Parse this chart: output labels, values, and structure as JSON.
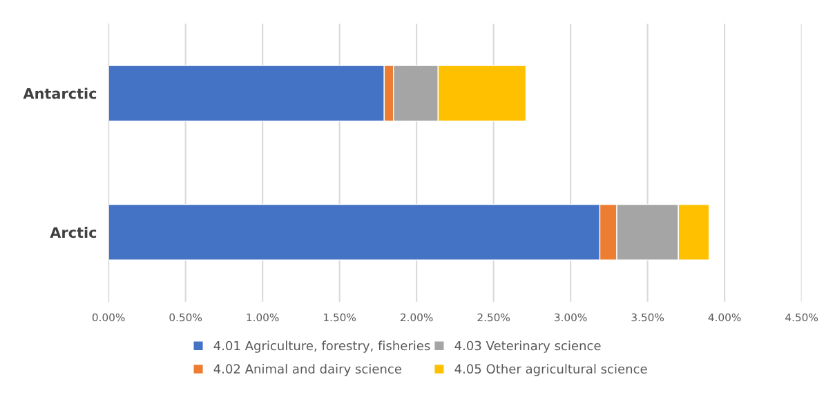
{
  "chart_data": {
    "type": "bar",
    "orientation": "horizontal",
    "stacked": true,
    "categories": [
      "Antarctic",
      "Arctic"
    ],
    "series": [
      {
        "name": "4.01 Agriculture, forestry, fisheries",
        "color": "#4472c4",
        "values": [
          1.79,
          3.19
        ]
      },
      {
        "name": "4.02 Animal and dairy science",
        "color": "#ed7d31",
        "values": [
          0.06,
          0.11
        ]
      },
      {
        "name": "4.03 Veterinary science",
        "color": "#a5a5a5",
        "values": [
          0.29,
          0.4
        ]
      },
      {
        "name": "4.05 Other agricultural science",
        "color": "#ffc000",
        "values": [
          0.57,
          0.2
        ]
      }
    ],
    "xlim": [
      0,
      4.5
    ],
    "xticks": [
      {
        "value": 0,
        "label": "0.00%"
      },
      {
        "value": 0.5,
        "label": "0.50%"
      },
      {
        "value": 1.0,
        "label": "1.00%"
      },
      {
        "value": 1.5,
        "label": "1.50%"
      },
      {
        "value": 2.0,
        "label": "2.00%"
      },
      {
        "value": 2.5,
        "label": "2.50%"
      },
      {
        "value": 3.0,
        "label": "3.00%"
      },
      {
        "value": 3.5,
        "label": "3.50%"
      },
      {
        "value": 4.0,
        "label": "4.00%"
      },
      {
        "value": 4.5,
        "label": "4.50%"
      }
    ],
    "grid": "x",
    "legend": "bottom"
  }
}
